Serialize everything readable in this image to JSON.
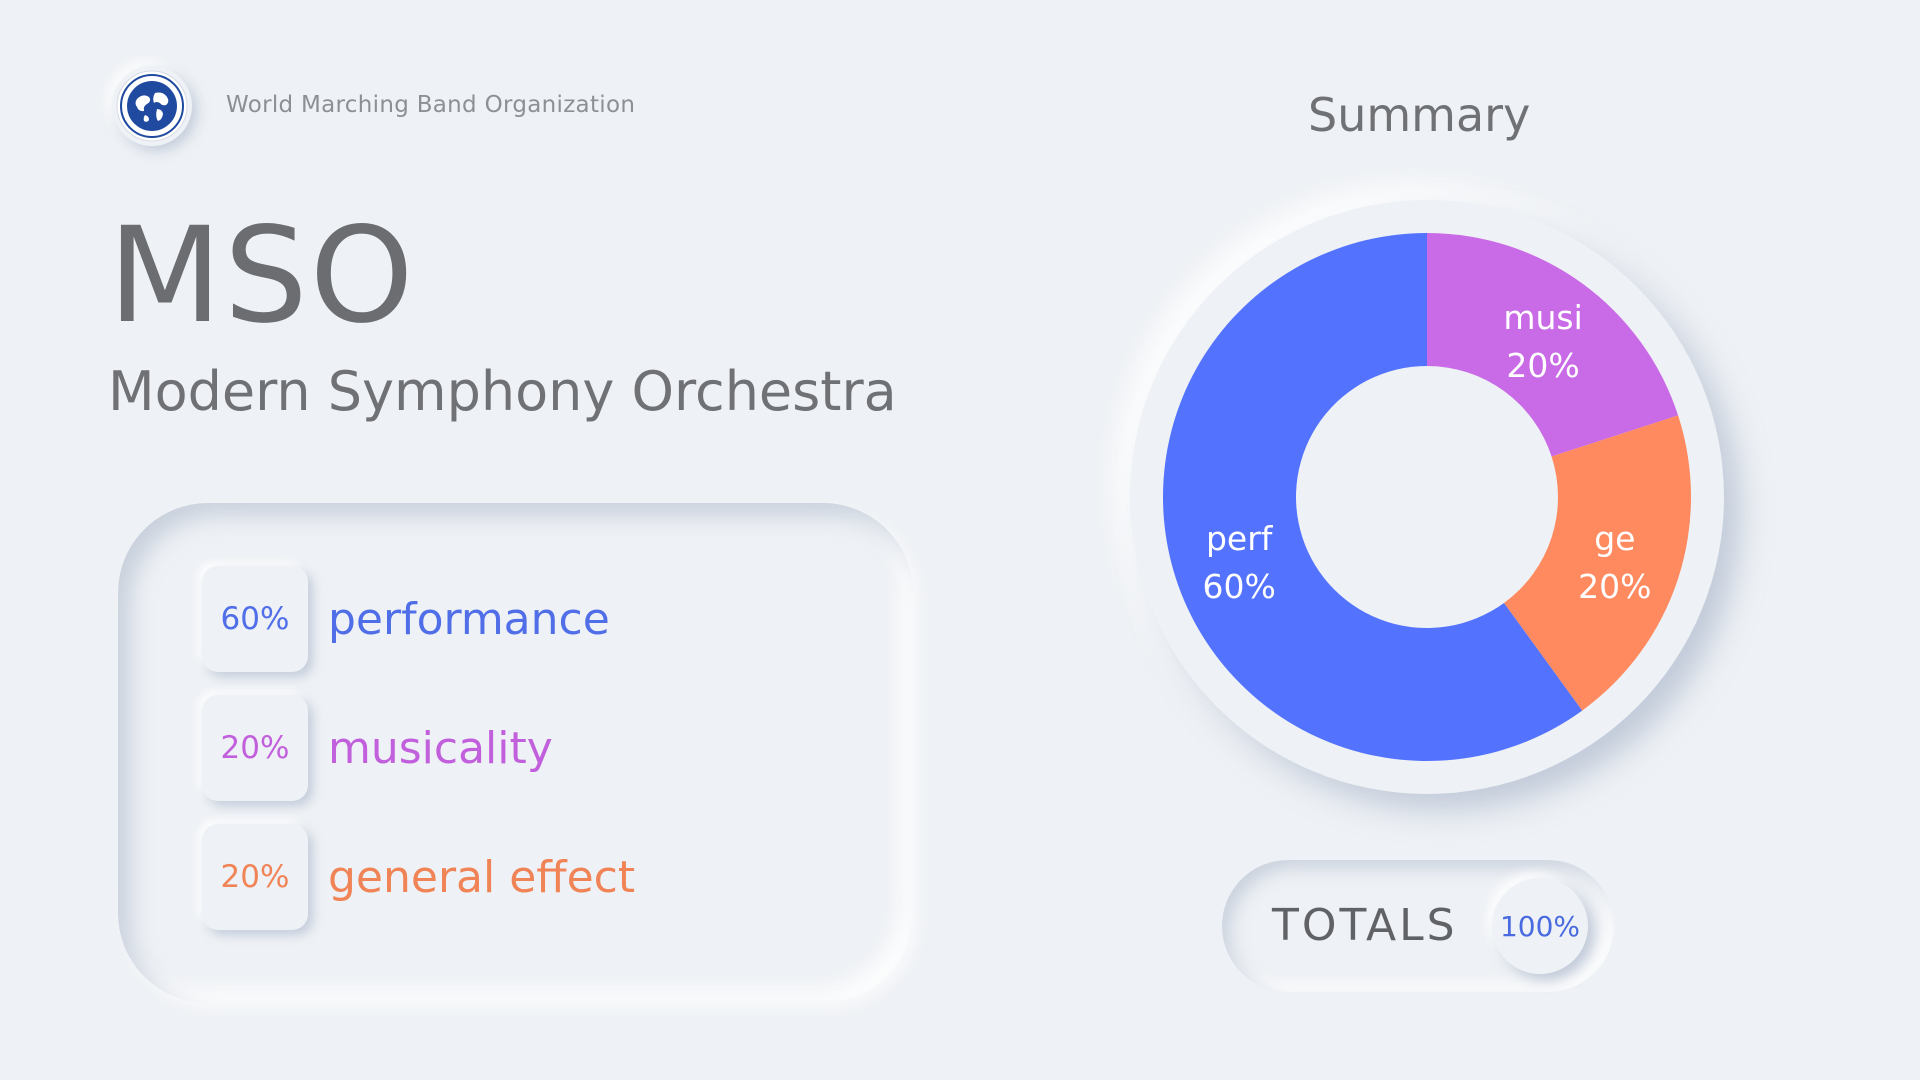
{
  "header": {
    "org_name": "World Marching Band Organization",
    "logo_icon": "globe-seal-icon"
  },
  "title": {
    "acronym": "MSO",
    "full_name": "Modern Symphony Orchestra"
  },
  "breakdown": {
    "items": [
      {
        "percent": "60%",
        "label": "performance",
        "color": "#4f6ee8"
      },
      {
        "percent": "20%",
        "label": "musicality",
        "color": "#c15fdc"
      },
      {
        "percent": "20%",
        "label": "general effect",
        "color": "#f08456"
      }
    ]
  },
  "summary": {
    "title": "Summary",
    "totals_label": "TOTALS",
    "totals_value": "100%"
  },
  "chart_data": {
    "type": "pie",
    "style": "donut",
    "categories": [
      "musi",
      "ge",
      "perf"
    ],
    "values": [
      20,
      20,
      60
    ],
    "value_labels": [
      "20%",
      "20%",
      "60%"
    ],
    "colors": [
      "#c96ae6",
      "#ff8a5f",
      "#5373ff"
    ],
    "title": "Summary",
    "legend": "none"
  }
}
